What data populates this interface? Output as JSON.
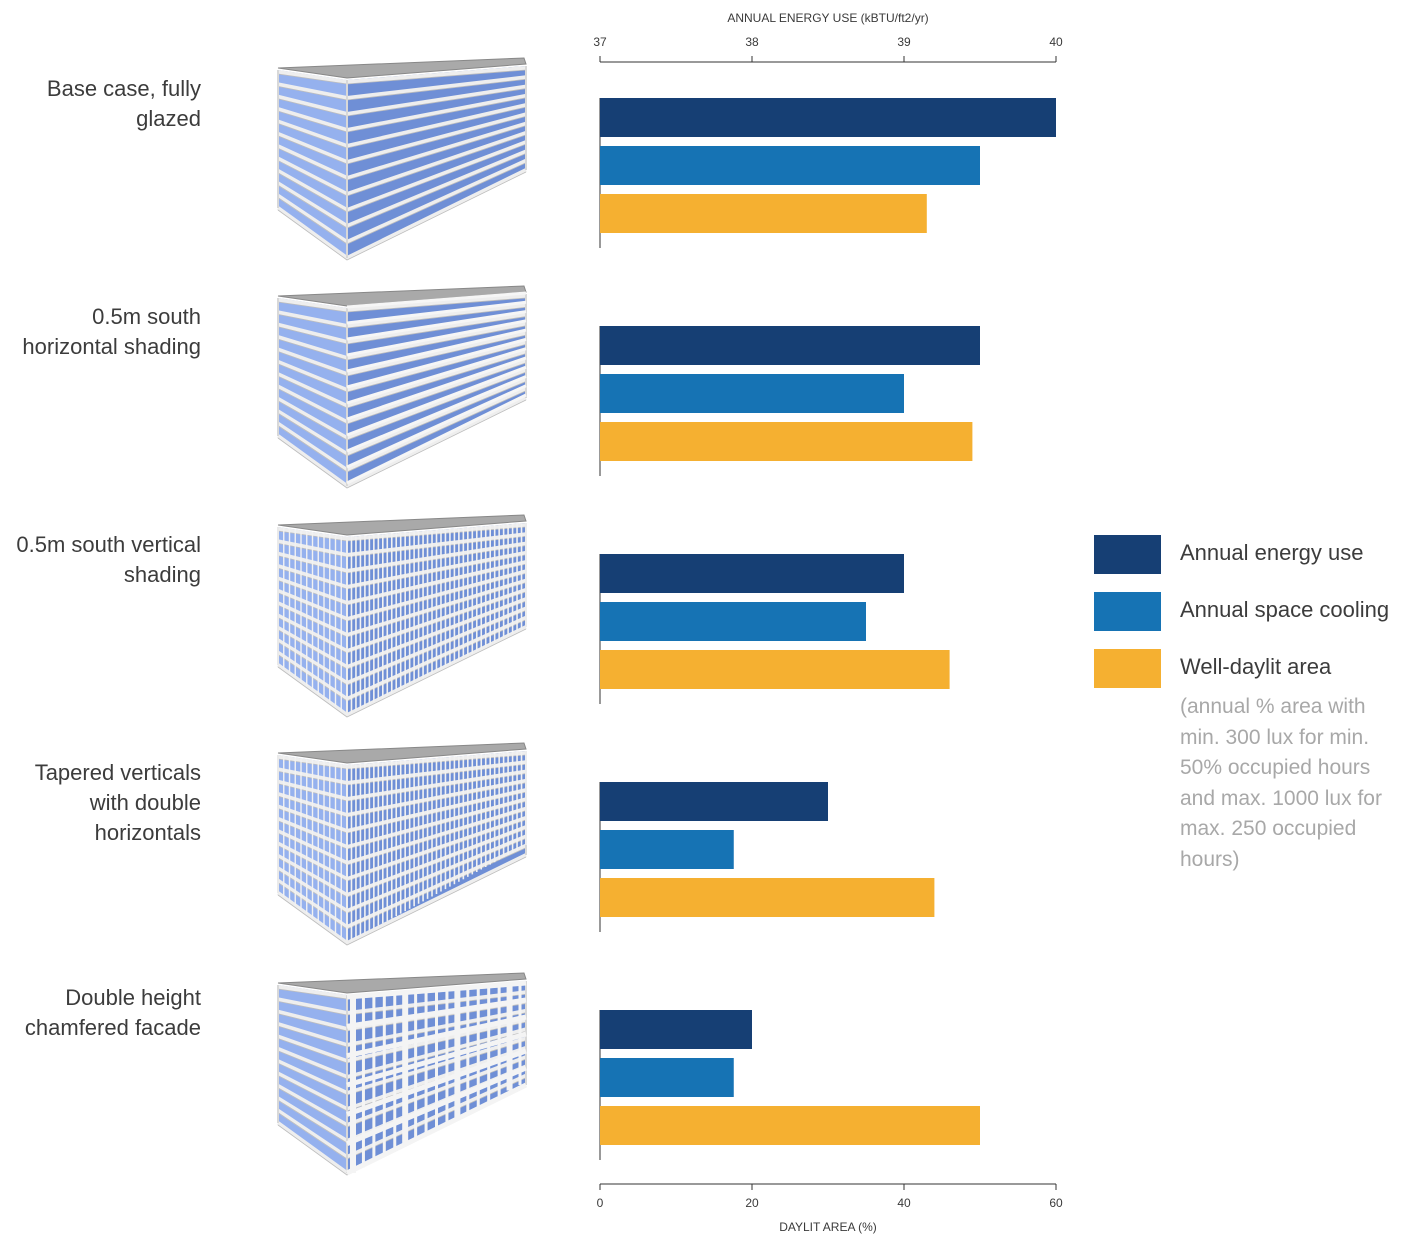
{
  "chart_data": {
    "type": "bar",
    "orientation": "horizontal",
    "top_axis": {
      "label": "ANNUAL ENERGY USE (kBTU/ft2/yr)",
      "range": [
        37,
        40
      ],
      "ticks": [
        "37",
        "38",
        "39",
        "40"
      ]
    },
    "bottom_axis": {
      "label": "DAYLIT AREA (%)",
      "range": [
        0,
        60
      ],
      "ticks": [
        "0",
        "20",
        "40",
        "60"
      ]
    },
    "categories": [
      [
        "Base case, fully",
        "glazed"
      ],
      [
        "0.5m south",
        "horizontal shading"
      ],
      [
        "0.5m south vertical",
        "shading"
      ],
      [
        "Tapered verticals",
        "with double",
        "horizontals"
      ],
      [
        "Double height",
        "chamfered facade"
      ]
    ],
    "series": [
      {
        "name": "Annual energy use",
        "color": "#163f74",
        "axis": "top",
        "values": [
          40.0,
          39.5,
          39.0,
          38.5,
          38.0
        ]
      },
      {
        "name": "Annual space cooling",
        "color": "#1673b4",
        "axis": "top",
        "values": [
          39.5,
          39.0,
          38.75,
          37.88,
          37.88
        ]
      },
      {
        "name": "Well-daylit area",
        "color": "#f5b031",
        "axis": "bottom",
        "values": [
          43,
          49,
          46,
          44,
          50
        ]
      }
    ],
    "legend_note": "(annual % area with min. 300 lux for min. 50% occupied hours and max. 1000 lux for max. 250 occupied hours)",
    "legend_position": "right",
    "grid": false,
    "building_icons": [
      "building-fully-glazed-icon",
      "building-horizontal-shading-icon",
      "building-vertical-shading-icon",
      "building-tapered-verticals-icon",
      "building-chamfered-facade-icon"
    ]
  }
}
